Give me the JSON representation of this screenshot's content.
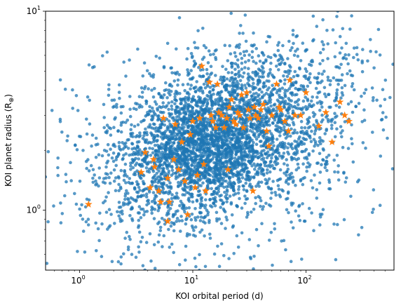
{
  "chart_data": {
    "type": "scatter",
    "title": "",
    "xlabel": "KOI orbital period (d)",
    "ylabel": "KOI planet radius (R",
    "ylabel_symbol": "⊕",
    "ylabel_suffix": ")",
    "xscale": "log",
    "yscale": "log",
    "xlim": [
      0.5,
      600
    ],
    "ylim": [
      0.5,
      10
    ],
    "grid": false,
    "x_major_ticks": [
      {
        "value": 1,
        "base": "10",
        "exp": "0"
      },
      {
        "value": 10,
        "base": "10",
        "exp": "1"
      },
      {
        "value": 100,
        "base": "10",
        "exp": "2"
      }
    ],
    "y_major_ticks": [
      {
        "value": 1,
        "base": "10",
        "exp": "0"
      },
      {
        "value": 10,
        "base": "10",
        "exp": "1"
      }
    ],
    "series": [
      {
        "marker": "circle",
        "color": "#1f77b4",
        "alpha": 0.75,
        "density_model": {
          "count": 4200,
          "seed": 12345,
          "components": [
            {
              "weight": 0.62,
              "log10_period_mean": 1.12,
              "log10_period_sd": 0.42,
              "log10_radius_mean": 0.33,
              "log10_radius_sd": 0.17
            },
            {
              "weight": 0.25,
              "log10_period_mean": 1.5,
              "log10_period_sd": 0.55,
              "log10_radius_mean": 0.47,
              "log10_radius_sd": 0.22
            },
            {
              "weight": 0.13,
              "log10_period_mean": 1.2,
              "log10_period_sd": 0.75,
              "log10_radius_mean": 0.2,
              "log10_radius_sd": 0.3
            }
          ]
        }
      },
      {
        "marker": "star",
        "color": "#ff7f0e",
        "points": [
          [
            1.2,
            1.07
          ],
          [
            3.5,
            1.55
          ],
          [
            3.8,
            1.95
          ],
          [
            4.2,
            1.3
          ],
          [
            4.5,
            1.8
          ],
          [
            4.6,
            1.65
          ],
          [
            5.0,
            1.25
          ],
          [
            5.2,
            1.1
          ],
          [
            5.5,
            2.9
          ],
          [
            6.0,
            1.45
          ],
          [
            6.0,
            0.88
          ],
          [
            6.2,
            1.1
          ],
          [
            6.8,
            1.8
          ],
          [
            7.0,
            2.7
          ],
          [
            7.5,
            1.6
          ],
          [
            8.0,
            2.2
          ],
          [
            8.5,
            1.4
          ],
          [
            9.0,
            0.95
          ],
          [
            9.5,
            2.4
          ],
          [
            10.0,
            2.8
          ],
          [
            10.5,
            1.3
          ],
          [
            11.0,
            1.5
          ],
          [
            11.5,
            2.9
          ],
          [
            12.0,
            5.3
          ],
          [
            12.5,
            1.7
          ],
          [
            13.0,
            1.25
          ],
          [
            14.0,
            4.4
          ],
          [
            14.5,
            3.0
          ],
          [
            15.0,
            2.8
          ],
          [
            16.0,
            2.6
          ],
          [
            16.5,
            4.3
          ],
          [
            17.0,
            3.1
          ],
          [
            18.0,
            3.0
          ],
          [
            19.0,
            2.6
          ],
          [
            20.0,
            2.9
          ],
          [
            20.5,
            1.6
          ],
          [
            21.0,
            3.3
          ],
          [
            22.0,
            3.6
          ],
          [
            23.0,
            2.8
          ],
          [
            24.0,
            2.7
          ],
          [
            25.0,
            3.1
          ],
          [
            26.0,
            3.0
          ],
          [
            27.0,
            3.8
          ],
          [
            28.0,
            2.6
          ],
          [
            30.0,
            3.9
          ],
          [
            31.0,
            3.2
          ],
          [
            32.0,
            2.9
          ],
          [
            34.0,
            1.25
          ],
          [
            35.0,
            3.3
          ],
          [
            36.0,
            3.0
          ],
          [
            38.0,
            2.9
          ],
          [
            40.0,
            3.2
          ],
          [
            42.0,
            3.4
          ],
          [
            45.0,
            2.5
          ],
          [
            47.0,
            2.1
          ],
          [
            50.0,
            3.0
          ],
          [
            55.0,
            4.3
          ],
          [
            58.0,
            3.3
          ],
          [
            60.0,
            3.2
          ],
          [
            65.0,
            2.8
          ],
          [
            70.0,
            2.5
          ],
          [
            72.0,
            4.5
          ],
          [
            80.0,
            3.0
          ],
          [
            90.0,
            3.0
          ],
          [
            100.0,
            3.9
          ],
          [
            130.0,
            2.65
          ],
          [
            150.0,
            3.1
          ],
          [
            170.0,
            2.2
          ],
          [
            200.0,
            3.5
          ],
          [
            220.0,
            3.0
          ],
          [
            240.0,
            2.8
          ]
        ]
      }
    ]
  }
}
